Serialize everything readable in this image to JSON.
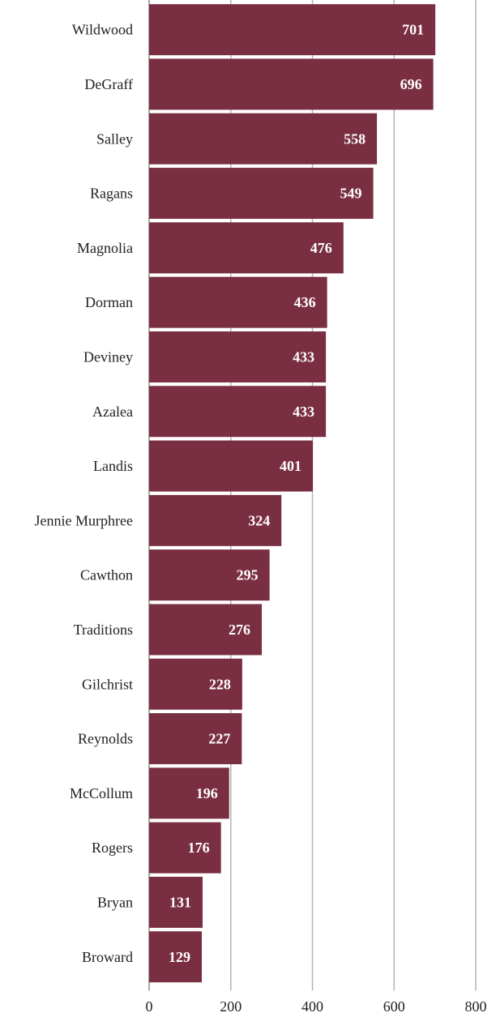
{
  "chart_data": {
    "type": "bar",
    "orientation": "horizontal",
    "categories": [
      "Wildwood",
      "DeGraff",
      "Salley",
      "Ragans",
      "Magnolia",
      "Dorman",
      "Deviney",
      "Azalea",
      "Landis",
      "Jennie Murphree",
      "Cawthon",
      "Traditions",
      "Gilchrist",
      "Reynolds",
      "McCollum",
      "Rogers",
      "Bryan",
      "Broward"
    ],
    "values": [
      701,
      696,
      558,
      549,
      476,
      436,
      433,
      433,
      401,
      324,
      295,
      276,
      228,
      227,
      196,
      176,
      131,
      129
    ],
    "title": "",
    "xlabel": "",
    "ylabel": "",
    "xlim": [
      0,
      800
    ],
    "xticks": [
      0,
      200,
      400,
      600,
      800
    ],
    "xtick_labels": [
      "0",
      "200",
      "400",
      "600",
      "800"
    ],
    "grid": "vertical",
    "legend": "none",
    "data_labels": true,
    "colors": {
      "bar": "#7a2e42",
      "data_label": "#ffffff",
      "gridline": "#b3b3b3",
      "text": "#222222"
    }
  }
}
